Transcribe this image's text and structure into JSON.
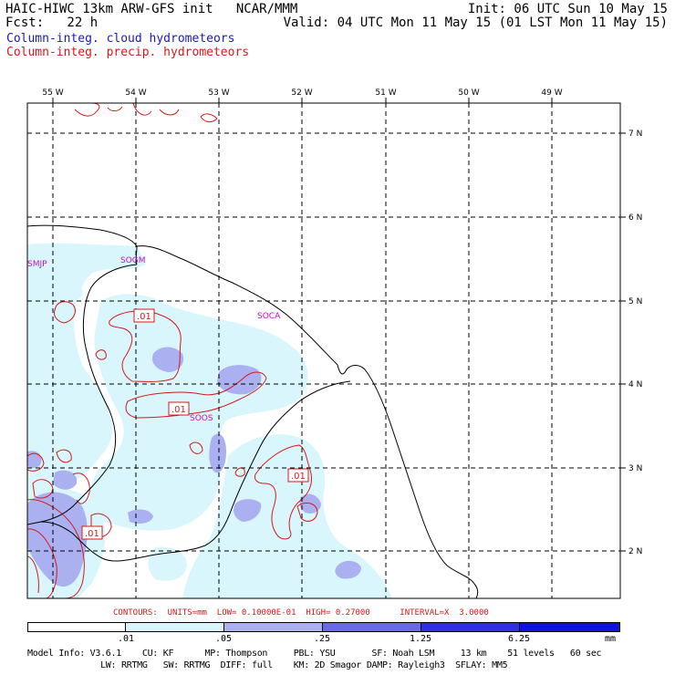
{
  "header": {
    "line1_left": "HAIC-HIWC 13km ARW-GFS init   NCAR/MMM",
    "line1_right": "Init: 06 UTC Sun 10 May 15",
    "line2_left": "Fcst:   22 h",
    "line2_right": "Valid: 04 UTC Mon 11 May 15 (01 LST Mon 11 May 15)",
    "legend_cloud": "Column-integ. cloud hydrometeors",
    "legend_precip": "Column-integ. precip. hydrometeors"
  },
  "colors": {
    "cloud_text": "#1818c8",
    "precip_text": "#d81818",
    "contour": "#d81818",
    "station": "#c010c0",
    "shade_1": "#d8f6fc",
    "shade_2": "#aab0f0",
    "shade_3": "#6a6ae8",
    "shade_4": "#3030e0",
    "shade_5": "#1010e0"
  },
  "map": {
    "lon_labels": [
      "55 W",
      "54 W",
      "53 W",
      "52 W",
      "51 W",
      "50 W",
      "49 W"
    ],
    "lat_labels": [
      "7 N",
      "6 N",
      "5 N",
      "4 N",
      "3 N",
      "2 N"
    ],
    "stations": [
      "SMJP",
      "SOGM",
      "SOCA",
      "SOOS"
    ],
    "contour_labels": [
      ".01",
      ".01",
      ".01",
      ".01"
    ]
  },
  "footer": {
    "contours_line": "CONTOURS:  UNITS=mm  LOW= 0.10000E-01  HIGH= 0.27000      INTERVAL=X  3.0000",
    "colorbar_ticks": [
      ".01",
      ".05",
      ".25",
      "1.25",
      "6.25",
      "mm"
    ],
    "model_info_1": "Model Info: V3.6.1    CU: KF      MP: Thompson     PBL: YSU       SF: Noah LSM     13 km    51 levels   60 sec",
    "model_info_2": "              LW: RRTMG   SW: RRTMG  DIFF: full    KM: 2D Smagor DAMP: Rayleigh3  SFLAY: MM5"
  }
}
